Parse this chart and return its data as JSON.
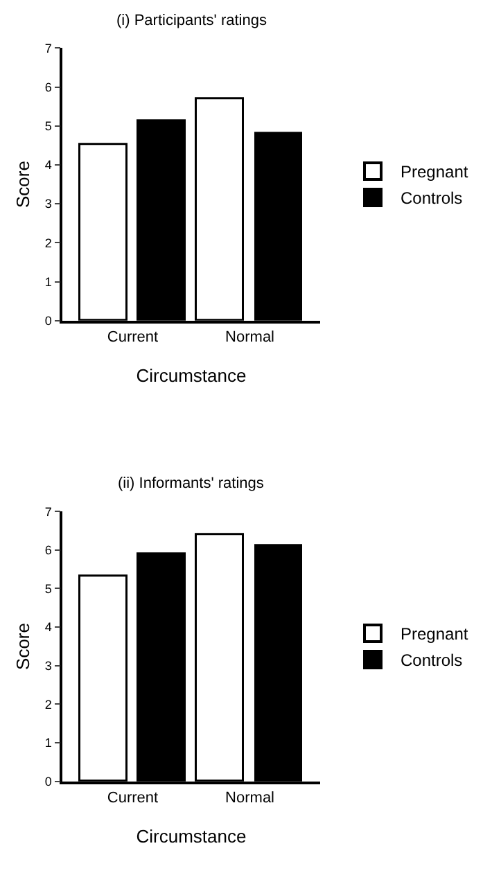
{
  "chart_data": [
    {
      "type": "bar",
      "title": "(i) Participants' ratings",
      "xlabel": "Circumstance",
      "ylabel": "Score",
      "categories": [
        "Current",
        "Normal"
      ],
      "series": [
        {
          "name": "Pregnant",
          "color": "#ffffff",
          "values": [
            4.5,
            5.7
          ]
        },
        {
          "name": "Controls",
          "color": "#000000",
          "values": [
            5.1,
            4.8
          ]
        }
      ],
      "ylim": [
        0,
        7
      ],
      "yticks": [
        0,
        1,
        2,
        3,
        4,
        5,
        6,
        7
      ],
      "legend": "right"
    },
    {
      "type": "bar",
      "title": "(ii) Informants' ratings",
      "xlabel": "Circumstance",
      "ylabel": "Score",
      "categories": [
        "Current",
        "Normal"
      ],
      "series": [
        {
          "name": "Pregnant",
          "color": "#ffffff",
          "values": [
            5.3,
            6.4
          ]
        },
        {
          "name": "Controls",
          "color": "#000000",
          "values": [
            5.9,
            6.1
          ]
        }
      ],
      "ylim": [
        0,
        7
      ],
      "yticks": [
        0,
        1,
        2,
        3,
        4,
        5,
        6,
        7
      ],
      "legend": "right"
    }
  ]
}
